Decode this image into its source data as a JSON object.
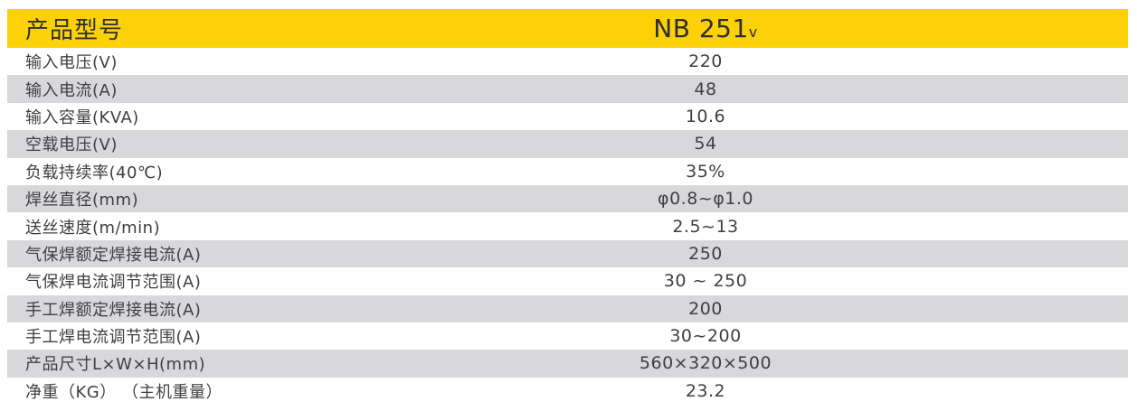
{
  "table": {
    "header": {
      "label": "产品型号",
      "model": "NB 251",
      "model_suffix": "v"
    },
    "rows": [
      {
        "label": "输入电压(V)",
        "value": "220"
      },
      {
        "label": "输入电流(A)",
        "value": "48"
      },
      {
        "label": "输入容量(KVA)",
        "value": "10.6"
      },
      {
        "label": "空载电压(V)",
        "value": "54"
      },
      {
        "label": "负载持续率(40℃)",
        "value": "35%"
      },
      {
        "label": "焊丝直径(mm)",
        "value": "φ0.8~φ1.0"
      },
      {
        "label": "送丝速度(m/min)",
        "value": "2.5~13"
      },
      {
        "label": "气保焊额定焊接电流(A)",
        "value": "250"
      },
      {
        "label": "气保焊电流调节范围(A)",
        "value": "30 ~ 250"
      },
      {
        "label": "手工焊额定焊接电流(A)",
        "value": "200"
      },
      {
        "label": "手工焊电流调节范围(A)",
        "value": "30~200"
      },
      {
        "label": "产品尺寸L×W×H(mm)",
        "value": "560×320×500"
      },
      {
        "label": "净重（KG） （主机重量）",
        "value": "23.2"
      }
    ],
    "colors": {
      "header_bg": "#FCD108",
      "alt_row_bg": "#D8D8DA",
      "text": "#3F3F41"
    }
  }
}
